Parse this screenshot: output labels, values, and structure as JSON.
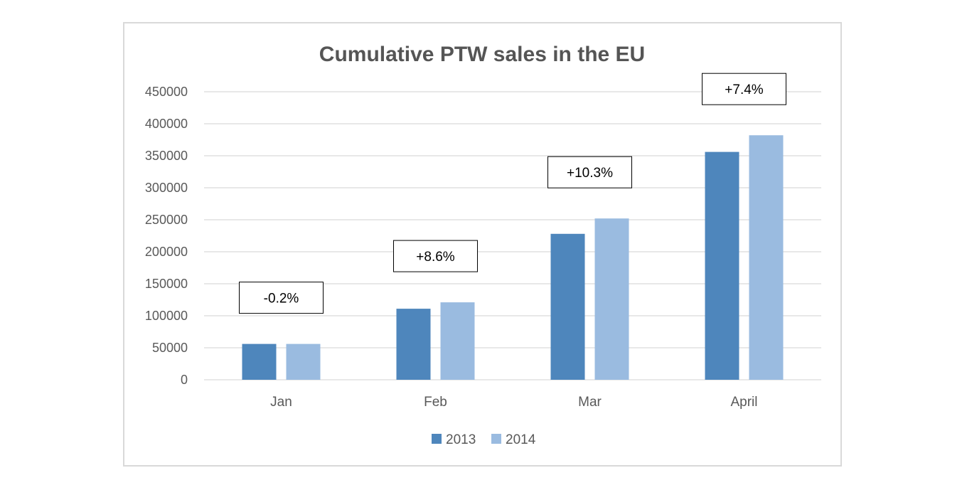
{
  "colors": {
    "series_2013": "#4e86bc",
    "series_2014": "#9abbe0",
    "grid": "#d9d9d9",
    "text": "#595959",
    "title": "#555555"
  },
  "chart_data": {
    "type": "bar",
    "title": "Cumulative PTW sales in the EU",
    "xlabel": "",
    "ylabel": "",
    "categories": [
      "Jan",
      "Feb",
      "Mar",
      "April"
    ],
    "series": [
      {
        "name": "2013",
        "values": [
          56000,
          111000,
          228000,
          356000
        ]
      },
      {
        "name": "2014",
        "values": [
          56000,
          121000,
          252000,
          382000
        ]
      }
    ],
    "ylim": [
      0,
      450000
    ],
    "yticks": [
      "0",
      "50000",
      "100000",
      "150000",
      "200000",
      "250000",
      "300000",
      "350000",
      "400000",
      "450000"
    ],
    "annotations": [
      "-0.2%",
      "+8.6%",
      "+10.3%",
      "+7.4%"
    ],
    "grid": true,
    "legend": "bottom"
  }
}
